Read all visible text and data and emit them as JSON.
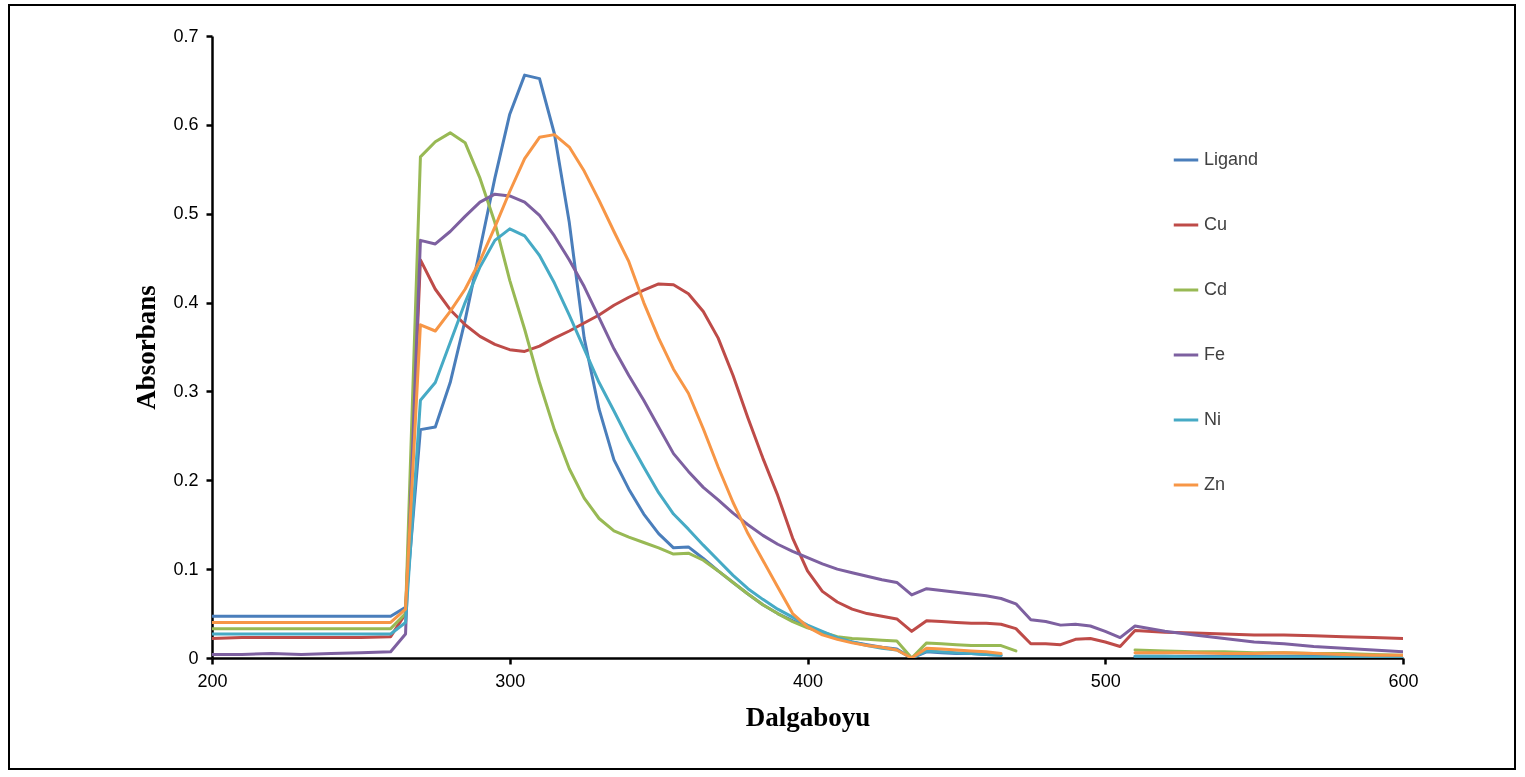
{
  "chart_data": {
    "type": "line",
    "xlabel": "Dalgaboyu",
    "ylabel": "Absorbans",
    "x": [
      200,
      210,
      220,
      230,
      240,
      250,
      260,
      265,
      270,
      275,
      280,
      285,
      290,
      295,
      300,
      305,
      310,
      315,
      320,
      325,
      330,
      335,
      340,
      345,
      350,
      355,
      360,
      365,
      370,
      375,
      380,
      385,
      390,
      395,
      400,
      405,
      410,
      415,
      420,
      425,
      430,
      435,
      440,
      445,
      450,
      455,
      460,
      465,
      470,
      475,
      480,
      485,
      490,
      495,
      500,
      505,
      510,
      520,
      530,
      540,
      550,
      560,
      570,
      580,
      590,
      600
    ],
    "series": [
      {
        "name": "Ligand",
        "color": "#4a7ebb",
        "values": [
          0.047,
          0.047,
          0.047,
          0.047,
          0.047,
          0.047,
          0.047,
          0.057,
          0.257,
          0.26,
          0.31,
          0.38,
          0.46,
          0.54,
          0.612,
          0.656,
          0.652,
          0.59,
          0.49,
          0.36,
          0.28,
          0.223,
          0.19,
          0.162,
          0.14,
          0.124,
          0.125,
          0.112,
          0.098,
          0.085,
          0.072,
          0.06,
          0.05,
          0.042,
          0.035,
          0.028,
          0.022,
          0.018,
          0.015,
          0.012,
          0.01,
          0,
          0.007,
          0.006,
          0.005,
          0.005,
          0.004,
          0.003,
          null,
          null,
          null,
          null,
          null,
          null,
          null,
          null,
          0.002,
          0.002,
          0.002,
          0.002,
          0.002,
          0.002,
          0.002,
          0.002,
          0.002,
          0.002
        ]
      },
      {
        "name": "Cu",
        "color": "#be4b48",
        "values": [
          0.022,
          0.023,
          0.023,
          0.023,
          0.023,
          0.023,
          0.024,
          0.05,
          0.448,
          0.415,
          0.392,
          0.375,
          0.362,
          0.353,
          0.347,
          0.345,
          0.351,
          0.36,
          0.368,
          0.377,
          0.386,
          0.397,
          0.406,
          0.414,
          0.421,
          0.42,
          0.41,
          0.39,
          0.36,
          0.318,
          0.27,
          0.225,
          0.183,
          0.135,
          0.098,
          0.075,
          0.063,
          0.055,
          0.05,
          0.047,
          0.044,
          0.03,
          0.042,
          0.041,
          0.04,
          0.039,
          0.039,
          0.038,
          0.033,
          0.016,
          0.016,
          0.015,
          0.021,
          0.022,
          0.018,
          0.013,
          0.031,
          0.029,
          0.028,
          0.027,
          0.026,
          0.026,
          0.025,
          0.024,
          0.023,
          0.022
        ]
      },
      {
        "name": "Cd",
        "color": "#98b954",
        "values": [
          0.033,
          0.033,
          0.033,
          0.033,
          0.033,
          0.033,
          0.033,
          0.05,
          0.564,
          0.581,
          0.591,
          0.58,
          0.54,
          0.49,
          0.425,
          0.37,
          0.31,
          0.257,
          0.213,
          0.18,
          0.157,
          0.143,
          0.136,
          0.13,
          0.124,
          0.117,
          0.118,
          0.11,
          0.098,
          0.085,
          0.072,
          0.06,
          0.05,
          0.041,
          0.034,
          0.029,
          0.024,
          0.022,
          0.021,
          0.02,
          0.019,
          0,
          0.017,
          0.016,
          0.015,
          0.014,
          0.014,
          0.014,
          0.008,
          null,
          null,
          null,
          null,
          null,
          null,
          null,
          0.009,
          0.008,
          0.007,
          0.007,
          0.006,
          0.006,
          0.005,
          0.005,
          0.004,
          0.003
        ]
      },
      {
        "name": "Fe",
        "color": "#7d60a0",
        "values": [
          0.004,
          0.004,
          0.005,
          0.004,
          0.005,
          0.006,
          0.007,
          0.027,
          0.47,
          0.466,
          0.48,
          0.497,
          0.513,
          0.522,
          0.52,
          0.513,
          0.498,
          0.475,
          0.448,
          0.418,
          0.383,
          0.348,
          0.318,
          0.29,
          0.26,
          0.23,
          0.21,
          0.192,
          0.178,
          0.163,
          0.15,
          0.138,
          0.128,
          0.12,
          0.113,
          0.106,
          0.1,
          0.096,
          0.092,
          0.088,
          0.085,
          0.071,
          0.078,
          0.076,
          0.074,
          0.072,
          0.07,
          0.067,
          0.061,
          0.043,
          0.041,
          0.037,
          0.038,
          0.036,
          0.03,
          0.023,
          0.036,
          0.03,
          0.026,
          0.022,
          0.018,
          0.016,
          0.013,
          0.011,
          0.009,
          0.007
        ]
      },
      {
        "name": "Ni",
        "color": "#46aac5",
        "values": [
          0.027,
          0.027,
          0.027,
          0.027,
          0.027,
          0.027,
          0.027,
          0.04,
          0.29,
          0.31,
          0.355,
          0.4,
          0.44,
          0.47,
          0.483,
          0.475,
          0.453,
          0.422,
          0.386,
          0.348,
          0.31,
          0.278,
          0.245,
          0.215,
          0.186,
          0.162,
          0.145,
          0.127,
          0.11,
          0.093,
          0.078,
          0.066,
          0.055,
          0.046,
          0.037,
          0.03,
          0.023,
          0.018,
          0.014,
          0.011,
          0.009,
          0,
          0.008,
          0.007,
          0.006,
          0.005,
          0.004,
          0.003,
          null,
          null,
          null,
          null,
          null,
          null,
          null,
          null,
          0.002,
          0.002,
          0.001,
          0.001,
          0.001,
          0.001,
          0.001,
          0.001,
          0.001,
          0.001
        ]
      },
      {
        "name": "Zn",
        "color": "#f79646",
        "values": [
          0.04,
          0.04,
          0.04,
          0.04,
          0.04,
          0.04,
          0.04,
          0.055,
          0.375,
          0.368,
          0.39,
          0.415,
          0.447,
          0.485,
          0.525,
          0.562,
          0.586,
          0.589,
          0.575,
          0.548,
          0.515,
          0.48,
          0.446,
          0.4,
          0.36,
          0.325,
          0.298,
          0.258,
          0.215,
          0.175,
          0.14,
          0.11,
          0.08,
          0.05,
          0.035,
          0.026,
          0.021,
          0.017,
          0.014,
          0.012,
          0.009,
          0,
          0.011,
          0.01,
          0.009,
          0.008,
          0.007,
          0.005,
          null,
          null,
          null,
          null,
          null,
          null,
          null,
          null,
          0.006,
          0.006,
          0.006,
          0.005,
          0.005,
          0.006,
          0.005,
          0.004,
          0.003,
          0.003
        ]
      }
    ],
    "xlim": [
      200,
      600
    ],
    "xticks": [
      200,
      300,
      400,
      500,
      600
    ],
    "ylim": [
      0,
      0.7
    ],
    "yticks": [
      0,
      0.1,
      0.2,
      0.3,
      0.4,
      0.5,
      0.6,
      0.7
    ],
    "grid": false,
    "legend": "right",
    "marker": "none",
    "line_style": "solid"
  }
}
